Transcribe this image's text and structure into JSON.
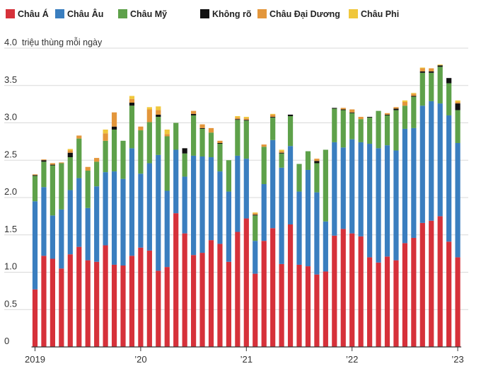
{
  "chart_data": {
    "type": "bar",
    "stacked": true,
    "title": "",
    "ylabel": "triệu thùng mỗi ngày",
    "ylim": [
      0,
      4.0
    ],
    "yticks": [
      "0",
      "0.5",
      "1.0",
      "1.5",
      "2.0",
      "2.5",
      "3.0",
      "3.5",
      "4.0"
    ],
    "xticks": [
      {
        "label": "2019",
        "index": 0
      },
      {
        "label": "’20",
        "index": 12
      },
      {
        "label": "’21",
        "index": 24
      },
      {
        "label": "’22",
        "index": 36
      },
      {
        "label": "’23",
        "index": 48
      }
    ],
    "grid": true,
    "legend_position": "top",
    "colors": {
      "asia": "#d6313a",
      "europe": "#3a7ebf",
      "americas": "#5ea14a",
      "unknown": "#111111",
      "oceania": "#e3963b",
      "africa": "#f0c73c"
    },
    "series": [
      {
        "key": "asia",
        "name": "Châu Á",
        "values": [
          0.77,
          1.22,
          1.18,
          1.05,
          1.24,
          1.34,
          1.16,
          1.14,
          1.36,
          1.1,
          1.09,
          1.22,
          1.33,
          1.29,
          1.02,
          1.07,
          1.79,
          1.52,
          1.23,
          1.26,
          1.43,
          1.38,
          1.14,
          1.54,
          1.72,
          0.98,
          1.42,
          1.59,
          1.11,
          1.64,
          1.1,
          1.08,
          0.97,
          1.01,
          1.49,
          1.58,
          1.52,
          1.48,
          1.2,
          1.13,
          1.21,
          1.16,
          1.39,
          1.46,
          1.66,
          1.69,
          1.75,
          1.41,
          1.2
        ]
      },
      {
        "key": "europe",
        "name": "Châu Âu",
        "values": [
          1.18,
          0.92,
          0.58,
          0.79,
          0.86,
          0.92,
          0.7,
          1.01,
          0.98,
          1.25,
          1.16,
          1.44,
          0.99,
          1.17,
          1.55,
          1.02,
          0.85,
          0.76,
          1.33,
          1.29,
          1.11,
          0.97,
          0.94,
          1.02,
          0.8,
          0.44,
          0.76,
          1.18,
          1.29,
          1.05,
          0.98,
          1.29,
          1.1,
          0.67,
          1.25,
          1.09,
          1.26,
          1.26,
          1.52,
          1.53,
          1.49,
          1.47,
          1.53,
          1.47,
          1.57,
          1.6,
          1.51,
          1.69,
          1.53
        ]
      },
      {
        "key": "americas",
        "name": "Châu Mỹ",
        "values": [
          0.34,
          0.34,
          0.67,
          0.62,
          0.44,
          0.53,
          0.5,
          0.33,
          0.42,
          0.56,
          0.51,
          0.57,
          0.58,
          0.55,
          0.51,
          0.73,
          0.36,
          0.31,
          0.54,
          0.37,
          0.33,
          0.37,
          0.42,
          0.48,
          0.51,
          0.34,
          0.5,
          0.3,
          0.19,
          0.4,
          0.37,
          0.25,
          0.39,
          0.96,
          0.45,
          0.5,
          0.35,
          0.31,
          0.35,
          0.5,
          0.4,
          0.54,
          0.31,
          0.42,
          0.44,
          0.38,
          0.49,
          0.43,
          0.44
        ]
      },
      {
        "key": "unknown",
        "name": "Không rõ",
        "values": [
          0.01,
          0.02,
          0.01,
          0.0,
          0.06,
          0.0,
          0.0,
          0.0,
          0.0,
          0.04,
          0.0,
          0.04,
          0.0,
          0.0,
          0.03,
          0.0,
          0.0,
          0.07,
          0.02,
          0.01,
          0.0,
          0.01,
          0.0,
          0.01,
          0.01,
          0.01,
          0.0,
          0.01,
          0.01,
          0.02,
          0.0,
          0.0,
          0.03,
          0.0,
          0.01,
          0.01,
          0.01,
          0.0,
          0.01,
          0.0,
          0.01,
          0.02,
          0.0,
          0.01,
          0.02,
          0.02,
          0.02,
          0.07,
          0.09
        ]
      },
      {
        "key": "oceania",
        "name": "Châu Đại Dương",
        "values": [
          0.01,
          0.01,
          0.02,
          0.01,
          0.03,
          0.04,
          0.05,
          0.05,
          0.1,
          0.19,
          0.0,
          0.05,
          0.05,
          0.17,
          0.06,
          0.03,
          0.0,
          0.0,
          0.04,
          0.05,
          0.06,
          0.03,
          0.0,
          0.02,
          0.02,
          0.02,
          0.03,
          0.03,
          0.02,
          0.0,
          0.0,
          0.0,
          0.03,
          0.0,
          0.0,
          0.02,
          0.04,
          0.03,
          0.0,
          0.0,
          0.02,
          0.02,
          0.05,
          0.03,
          0.04,
          0.04,
          0.0,
          0.0,
          0.02
        ]
      },
      {
        "key": "africa",
        "name": "Châu Phi",
        "values": [
          0.0,
          0.0,
          0.0,
          0.0,
          0.02,
          0.0,
          0.0,
          0.0,
          0.05,
          0.0,
          0.0,
          0.04,
          0.0,
          0.03,
          0.05,
          0.06,
          0.0,
          0.0,
          0.0,
          0.0,
          0.0,
          0.0,
          0.0,
          0.02,
          0.02,
          0.01,
          0.0,
          0.01,
          0.02,
          0.0,
          0.0,
          0.0,
          0.0,
          0.0,
          0.0,
          0.0,
          0.0,
          0.0,
          0.0,
          0.0,
          0.0,
          0.0,
          0.02,
          0.01,
          0.01,
          0.0,
          0.01,
          0.0,
          0.02
        ]
      }
    ]
  }
}
